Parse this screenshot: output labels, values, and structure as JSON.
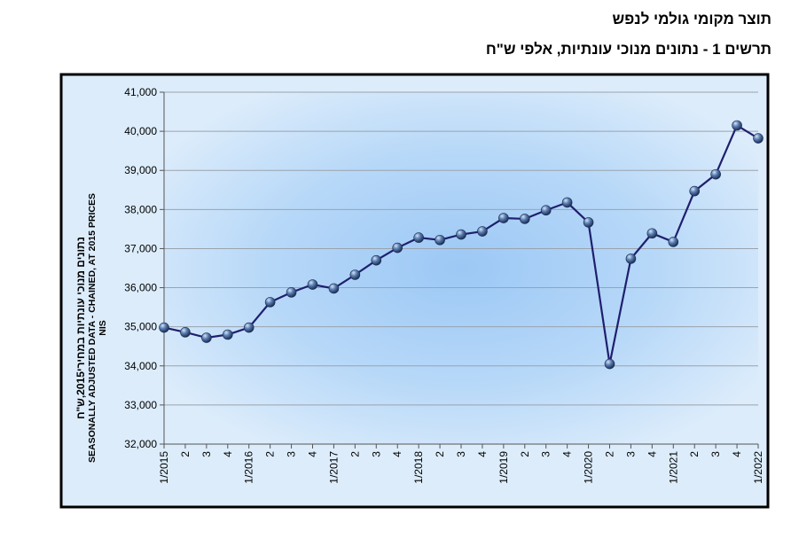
{
  "title": "תוצר מקומי גולמי לנפש",
  "subtitle": "תרשים 1 - נתונים מנוכי עונתיות, אלפי ש\"ח",
  "chart_data": {
    "type": "line",
    "title": "תוצר מקומי גולמי לנפש",
    "subtitle": "תרשים 1 - נתונים מנוכי עונתיות, אלפי ש\"ח",
    "ylabel_lines": [
      "נתונים מנוכי עונתיות במחירי2015,ש\"ח",
      "SEASONALLY ADJUSTED DATA - CHAINED, AT 2015 PRICES",
      "NIS"
    ],
    "xlabel": "",
    "ylim": [
      32000,
      41000
    ],
    "yticks": [
      "32,000",
      "33,000",
      "34,000",
      "35,000",
      "36,000",
      "37,000",
      "38,000",
      "39,000",
      "40,000",
      "41,000"
    ],
    "categories": [
      "1/2015",
      "2",
      "3",
      "4",
      "1/2016",
      "2",
      "3",
      "4",
      "1/2017",
      "2",
      "3",
      "4",
      "1/2018",
      "2",
      "3",
      "4",
      "1/2019",
      "2",
      "3",
      "4",
      "1/2020",
      "2",
      "3",
      "4",
      "1/2021",
      "2",
      "3",
      "4",
      "1/2022"
    ],
    "values": [
      34980,
      34860,
      34720,
      34800,
      34980,
      35630,
      35880,
      36080,
      35980,
      36330,
      36700,
      37020,
      37280,
      37220,
      37360,
      37440,
      37780,
      37760,
      37980,
      38180,
      37670,
      34050,
      36740,
      37390,
      37170,
      38470,
      38900,
      40150,
      39820
    ],
    "grid": true,
    "legend": "none",
    "colors": {
      "line": "#1f1f6e",
      "marker": "#4a6fa5",
      "frame": "#000000",
      "plot_center": "#9cc8f5",
      "plot_edge": "#dcecfb",
      "grid": "#9aa3ad"
    }
  }
}
